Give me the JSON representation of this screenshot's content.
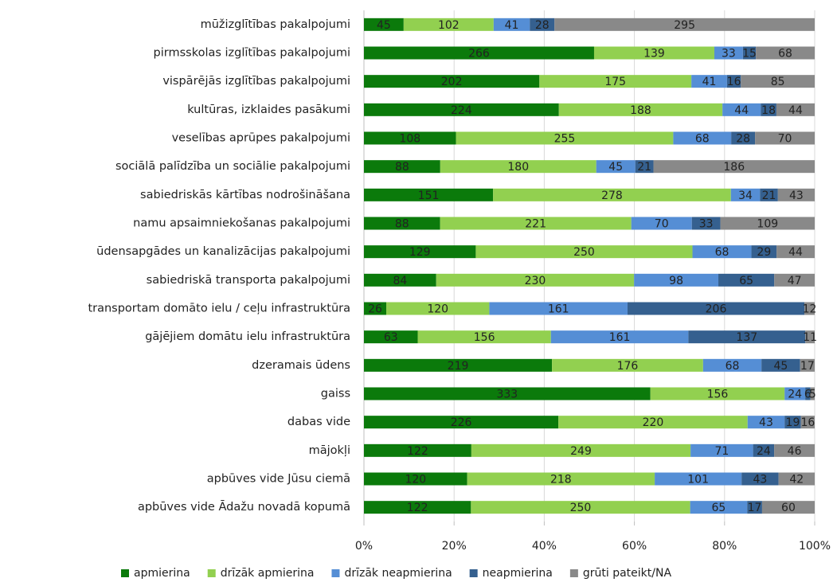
{
  "chart_data": {
    "type": "bar",
    "orientation": "horizontal",
    "stacking": "percent",
    "categories": [
      "mūžizglītības pakalpojumi",
      "pirmsskolas izglītības pakalpojumi",
      "vispārējās izglītības pakalpojumi",
      "kultūras, izklaides pasākumi",
      "veselības aprūpes pakalpojumi",
      "sociālā palīdzība un sociālie pakalpojumi",
      "sabiedriskās kārtības nodrošināšana",
      "namu apsaimniekošanas pakalpojumi",
      "ūdensapgādes un kanalizācijas pakalpojumi",
      "sabiedriskā transporta pakalpojumi",
      "transportam domāto ielu / ceļu infrastruktūra",
      "gājējiem domātu ielu infrastruktūra",
      "dzeramais ūdens",
      "gaiss",
      "dabas vide",
      "mājokļi",
      "apbūves vide Jūsu ciemā",
      "apbūves vide Ādažu novadā kopumā"
    ],
    "series": [
      {
        "name": "apmierina",
        "color": "#0b7a0b",
        "values": [
          45,
          266,
          202,
          224,
          108,
          88,
          151,
          88,
          129,
          84,
          26,
          63,
          219,
          333,
          226,
          122,
          120,
          122
        ]
      },
      {
        "name": "drīzāk apmierina",
        "color": "#92d050",
        "values": [
          102,
          139,
          175,
          188,
          255,
          180,
          278,
          221,
          250,
          230,
          120,
          156,
          176,
          156,
          220,
          249,
          218,
          250
        ]
      },
      {
        "name": "drīzāk neapmierina",
        "color": "#558ed5",
        "values": [
          41,
          33,
          41,
          44,
          68,
          45,
          34,
          70,
          68,
          98,
          161,
          161,
          68,
          24,
          43,
          71,
          101,
          65
        ]
      },
      {
        "name": "neapmierina",
        "color": "#35608f",
        "values": [
          28,
          15,
          16,
          18,
          28,
          21,
          21,
          33,
          29,
          65,
          206,
          137,
          45,
          6,
          19,
          24,
          43,
          17
        ]
      },
      {
        "name": "grūti pateikt/NA",
        "color": "#898989",
        "values": [
          295,
          68,
          85,
          44,
          70,
          186,
          43,
          109,
          44,
          47,
          12,
          11,
          17,
          5,
          16,
          46,
          42,
          60
        ]
      }
    ],
    "xlim": [
      0,
      100
    ],
    "xticks": [
      {
        "value": 0,
        "label": "0%"
      },
      {
        "value": 20,
        "label": "20%"
      },
      {
        "value": 40,
        "label": "40%"
      },
      {
        "value": 60,
        "label": "60%"
      },
      {
        "value": 80,
        "label": "80%"
      },
      {
        "value": 100,
        "label": "100%"
      }
    ],
    "grid": true,
    "legend": "bottom"
  }
}
